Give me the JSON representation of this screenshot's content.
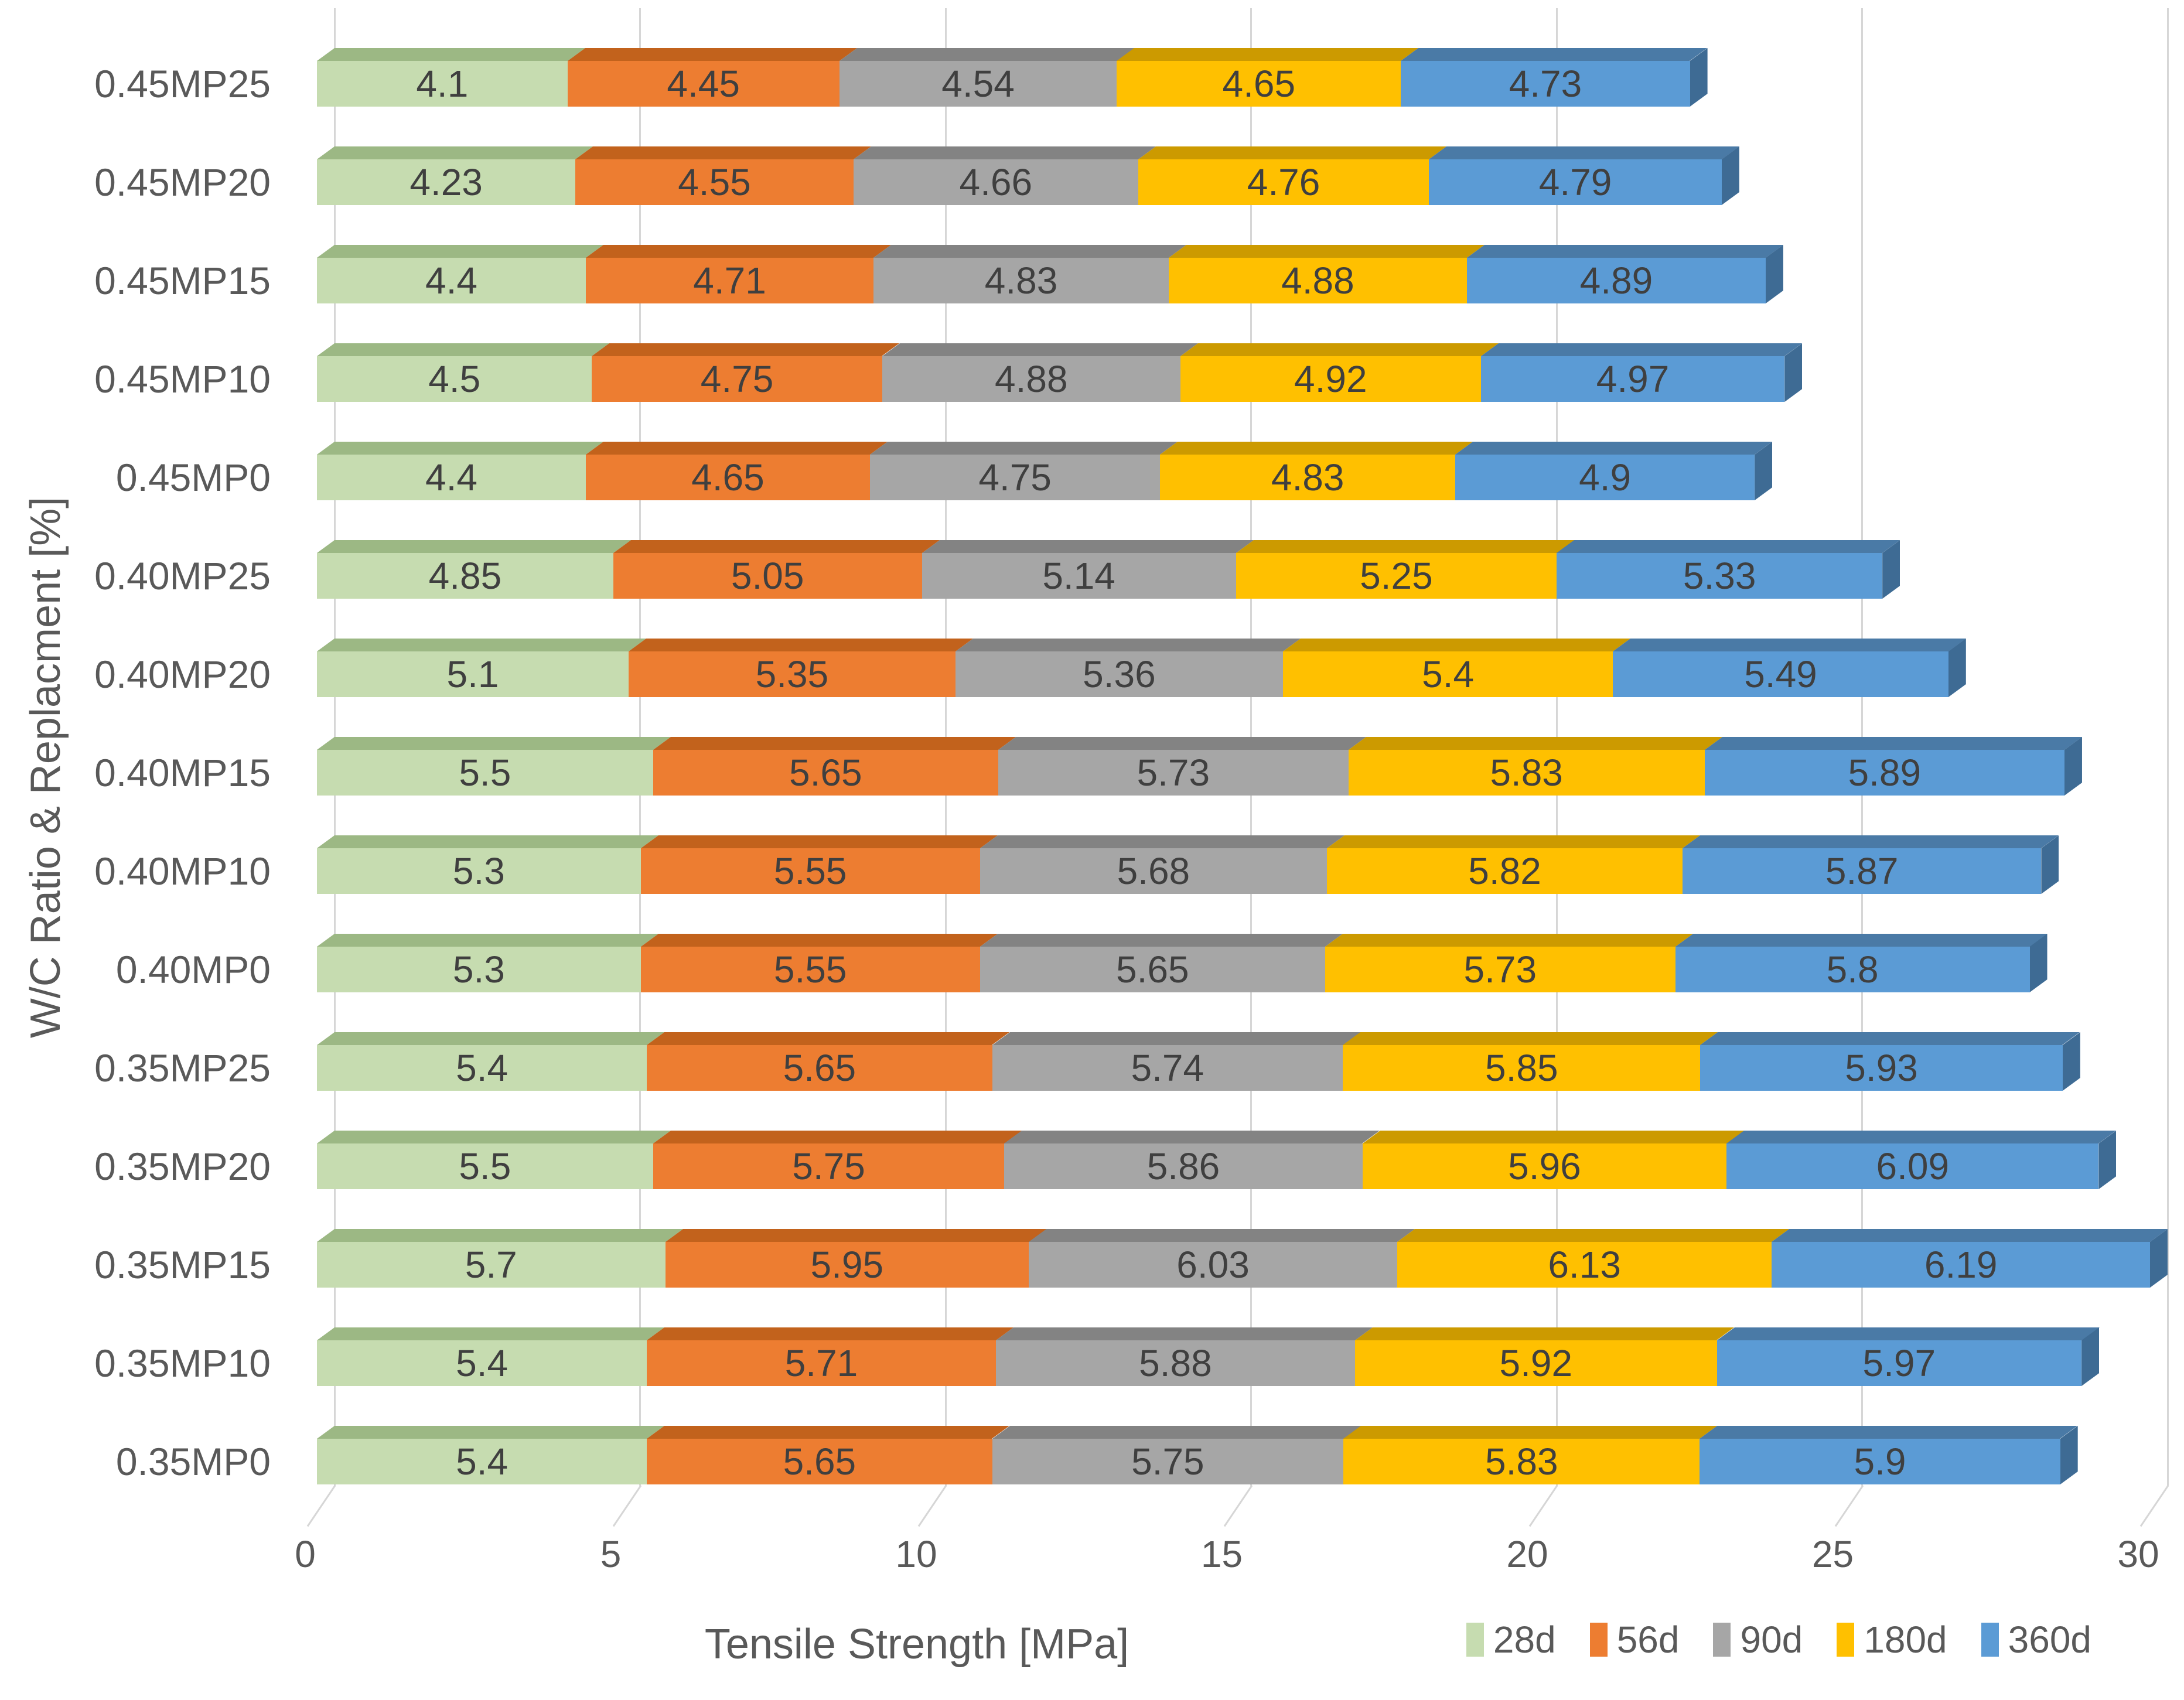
{
  "chart_data": {
    "type": "bar",
    "variant": "horizontal-stacked-3d",
    "title": "",
    "xlabel": "Tensile Strength [MPa]",
    "ylabel": "W/C Ratio & Replacment [%]",
    "xlim": [
      0,
      30
    ],
    "xticks": [
      0,
      5,
      10,
      15,
      20,
      25,
      30
    ],
    "grid": true,
    "legend_position": "bottom-right",
    "categories": [
      "0.45MP25",
      "0.45MP20",
      "0.45MP15",
      "0.45MP10",
      "0.45MP0",
      "0.40MP25",
      "0.40MP20",
      "0.40MP15",
      "0.40MP10",
      "0.40MP0",
      "0.35MP25",
      "0.35MP20",
      "0.35MP15",
      "0.35MP10",
      "0.35MP0"
    ],
    "series": [
      {
        "name": "28d",
        "color": "#c6dcb0",
        "top_color": "#9cb884",
        "side_color": "#8fae74",
        "values": [
          4.1,
          4.23,
          4.4,
          4.5,
          4.4,
          4.85,
          5.1,
          5.5,
          5.3,
          5.3,
          5.4,
          5.5,
          5.7,
          5.4,
          5.4
        ]
      },
      {
        "name": "56d",
        "color": "#ed7d31",
        "top_color": "#c2621c",
        "side_color": "#b25a19",
        "values": [
          4.45,
          4.55,
          4.71,
          4.75,
          4.65,
          5.05,
          5.35,
          5.65,
          5.55,
          5.55,
          5.65,
          5.75,
          5.95,
          5.71,
          5.65
        ]
      },
      {
        "name": "90d",
        "color": "#a6a6a6",
        "top_color": "#838383",
        "side_color": "#787878",
        "values": [
          4.54,
          4.66,
          4.83,
          4.88,
          4.75,
          5.14,
          5.36,
          5.73,
          5.68,
          5.65,
          5.74,
          5.86,
          6.03,
          5.88,
          5.75
        ]
      },
      {
        "name": "180d",
        "color": "#ffc000",
        "top_color": "#cc9a00",
        "side_color": "#bf8f00",
        "values": [
          4.65,
          4.76,
          4.88,
          4.92,
          4.83,
          5.25,
          5.4,
          5.83,
          5.82,
          5.73,
          5.85,
          5.96,
          6.13,
          5.92,
          5.83
        ]
      },
      {
        "name": "360d",
        "color": "#5b9bd5",
        "top_color": "#4a7aa6",
        "side_color": "#3e6b94",
        "values": [
          4.73,
          4.79,
          4.89,
          4.97,
          4.9,
          5.33,
          5.49,
          5.89,
          5.87,
          5.8,
          5.93,
          6.09,
          6.19,
          5.97,
          5.9
        ]
      }
    ],
    "colors": {
      "background": "#ffffff",
      "gridline": "#d6d6d6",
      "axis_text": "#595959",
      "value_label_text": "#3f3f3f"
    }
  }
}
